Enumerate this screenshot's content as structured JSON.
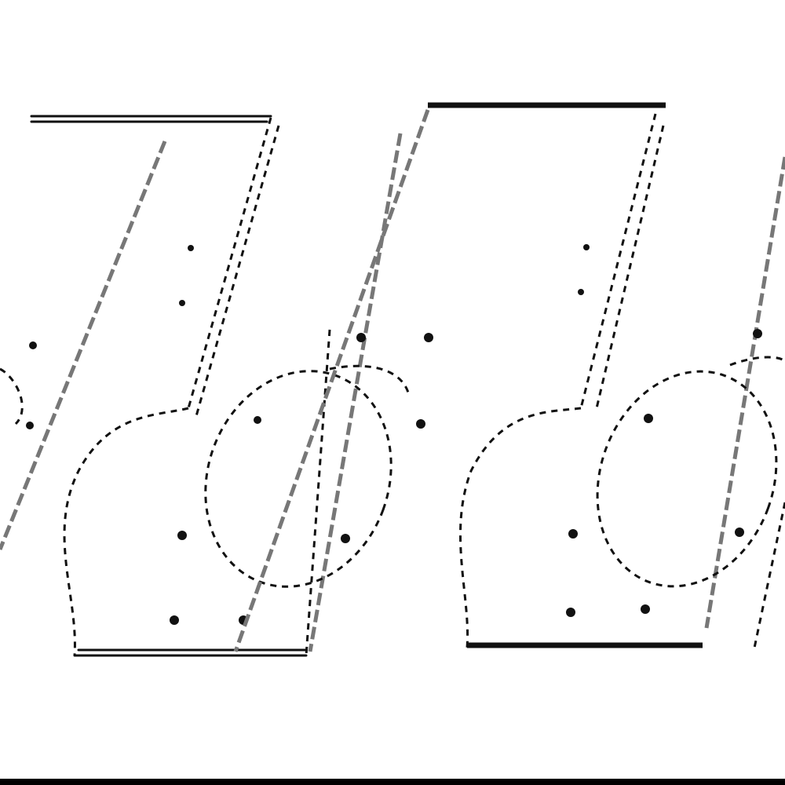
{
  "colors": {
    "line": "#111111",
    "secondary_line": "#777777",
    "background": "#ffffff",
    "bottom_bar": "#000000"
  }
}
